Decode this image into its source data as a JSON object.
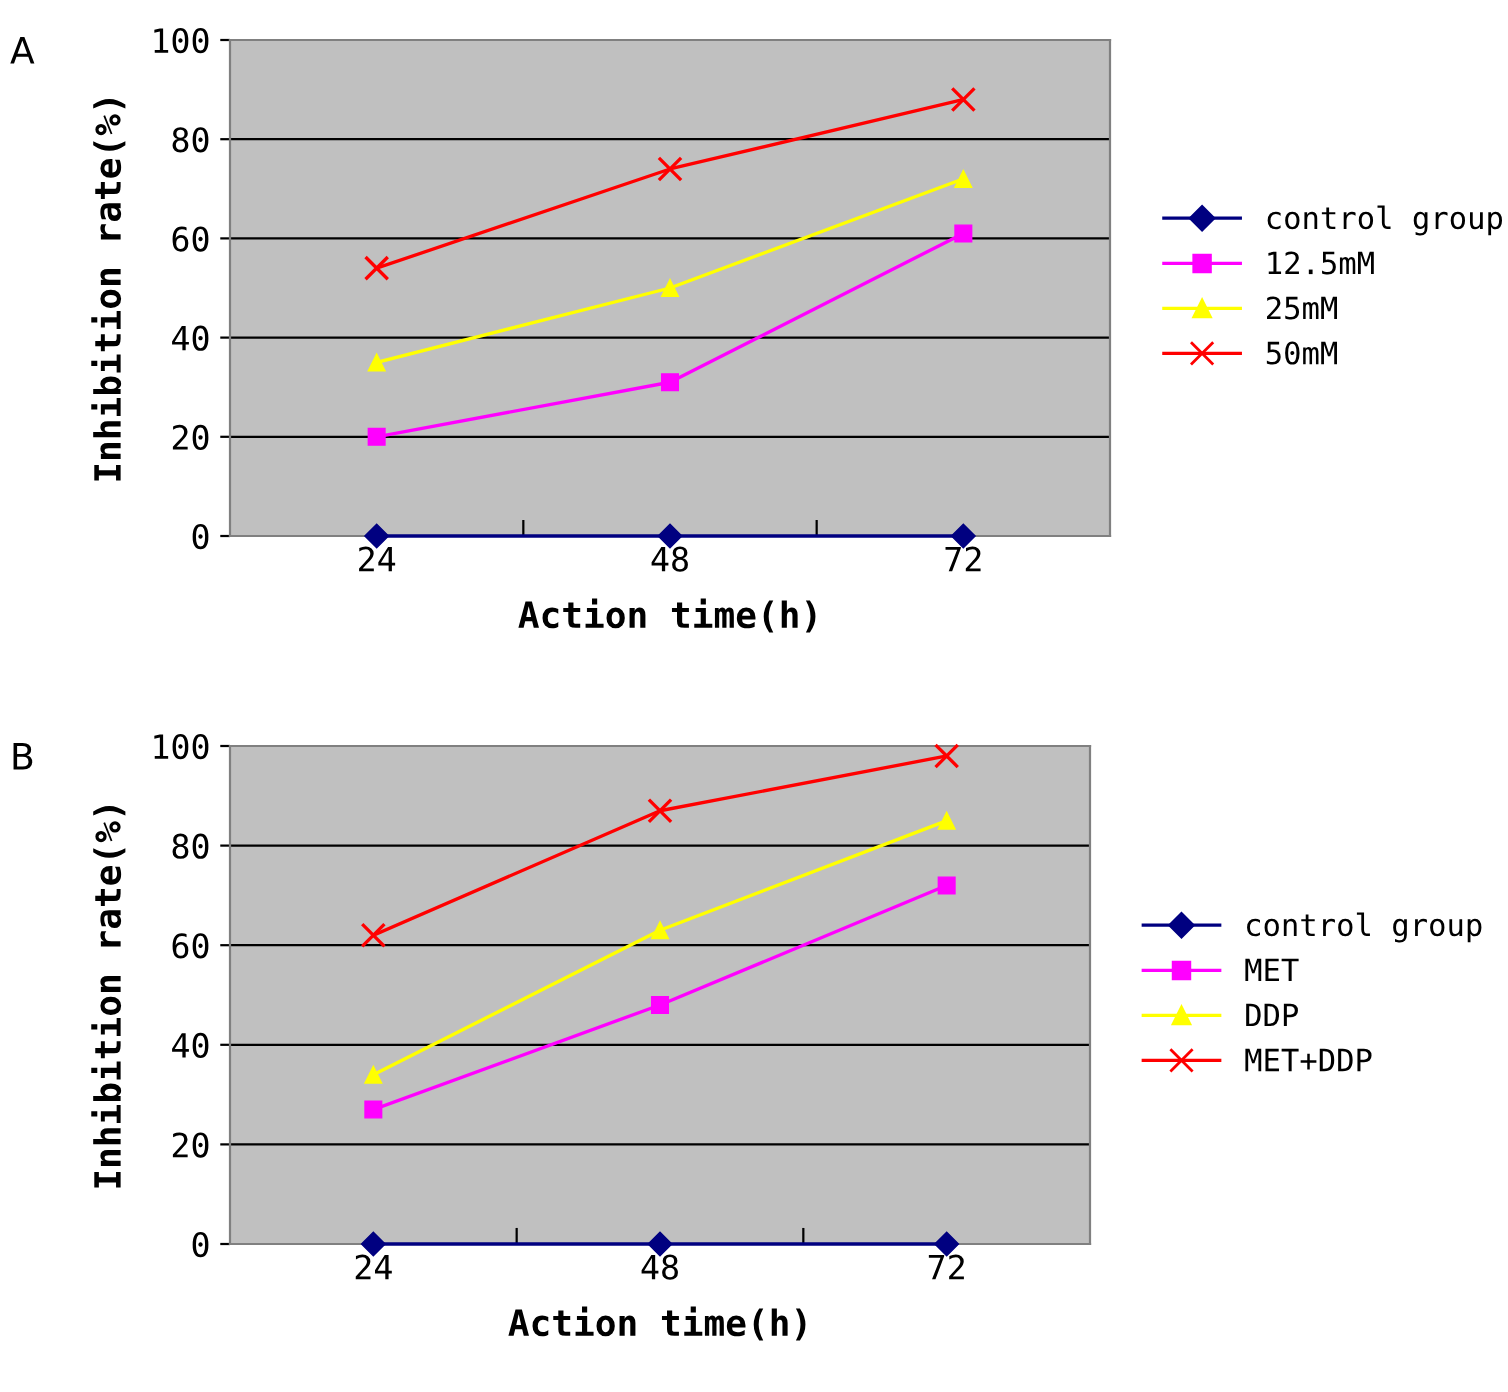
{
  "chart_data": [
    {
      "type": "line",
      "categories": [
        "24",
        "48",
        "72"
      ],
      "xlabel": "Action time(h)",
      "ylabel": "Inhibition rate(%)",
      "ylim": [
        0,
        100
      ],
      "yticks": [
        0,
        20,
        40,
        60,
        80,
        100
      ],
      "grid": "y",
      "legend": "right",
      "annotations": [
        "A"
      ],
      "series": [
        {
          "name": "control group",
          "color": "#000080",
          "marker": "diamond",
          "values": [
            0,
            0,
            0
          ]
        },
        {
          "name": "12.5mM",
          "color": "#ff00ff",
          "marker": "square",
          "values": [
            20,
            31,
            61
          ]
        },
        {
          "name": "25mM",
          "color": "#ffff00",
          "marker": "triangle",
          "values": [
            35,
            50,
            72
          ]
        },
        {
          "name": "50mM",
          "color": "#ff0000",
          "marker": "cross",
          "values": [
            54,
            74,
            88
          ]
        }
      ]
    },
    {
      "type": "line",
      "categories": [
        "24",
        "48",
        "72"
      ],
      "xlabel": "Action time(h)",
      "ylabel": "Inhibition rate(%)",
      "ylim": [
        0,
        100
      ],
      "yticks": [
        0,
        20,
        40,
        60,
        80,
        100
      ],
      "grid": "y",
      "legend": "right",
      "annotations": [
        "B"
      ],
      "series": [
        {
          "name": "control group",
          "color": "#000080",
          "marker": "diamond",
          "values": [
            0,
            0,
            0
          ]
        },
        {
          "name": "MET",
          "color": "#ff00ff",
          "marker": "square",
          "values": [
            27,
            48,
            72
          ]
        },
        {
          "name": "DDP",
          "color": "#ffff00",
          "marker": "triangle",
          "values": [
            34,
            63,
            85
          ]
        },
        {
          "name": "MET+DDP",
          "color": "#ff0000",
          "marker": "cross",
          "values": [
            62,
            87,
            98
          ]
        }
      ]
    }
  ]
}
